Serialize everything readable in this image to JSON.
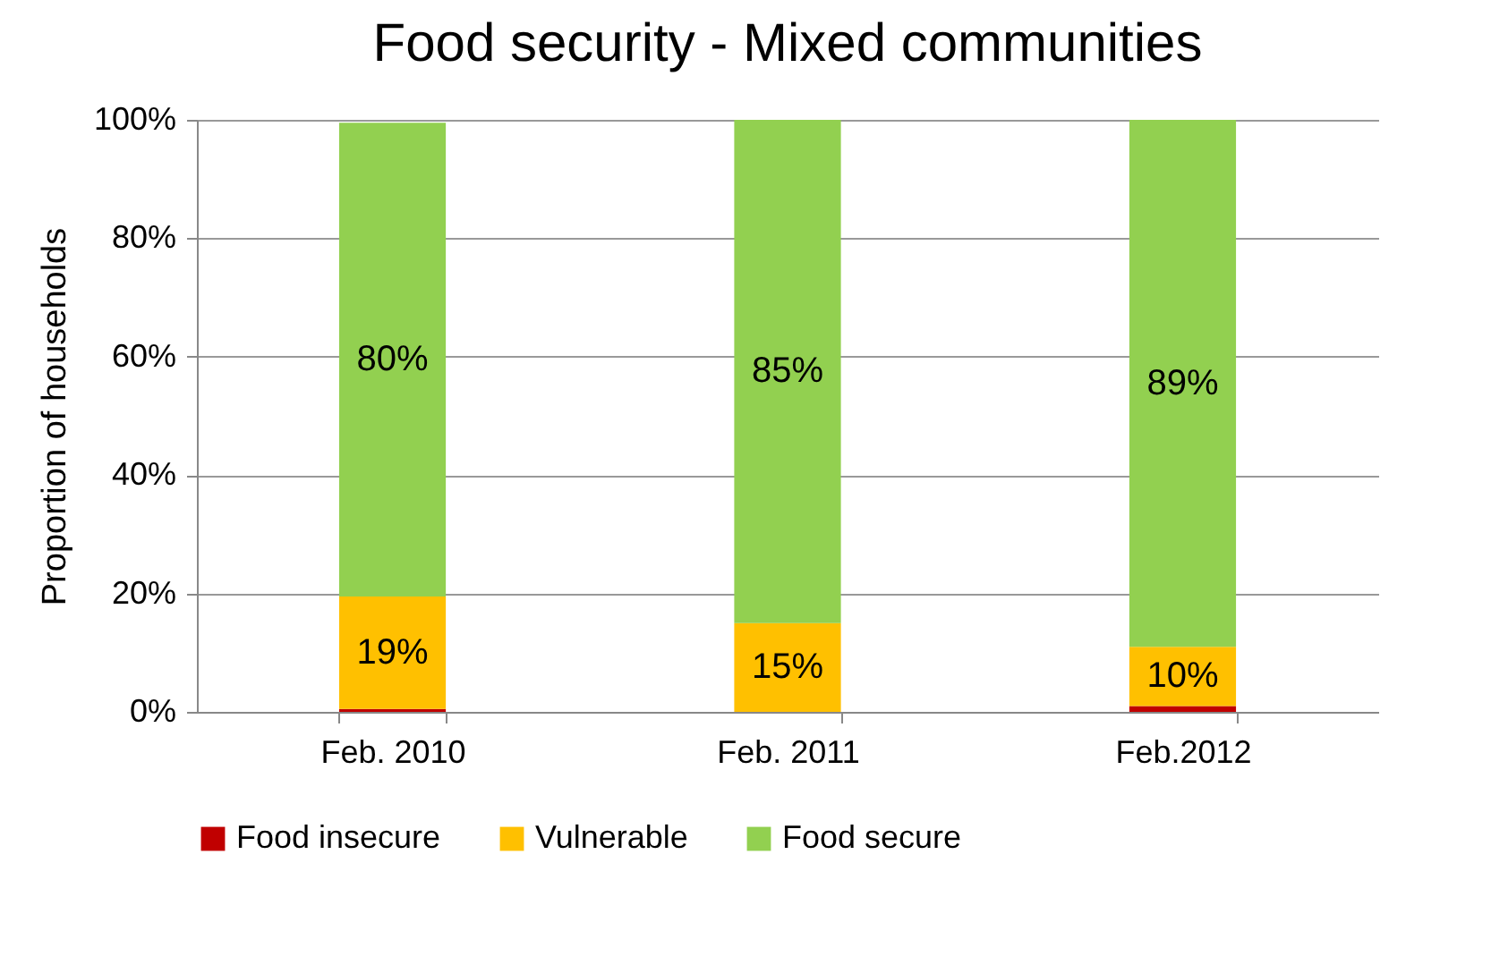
{
  "chart_data": {
    "type": "bar",
    "title": "Food security - Mixed communities",
    "ylabel": "Proportion of households",
    "categories": [
      "Feb. 2010",
      "Feb. 2011",
      "Feb.2012"
    ],
    "stacked": true,
    "series": [
      {
        "name": "Food insecure",
        "color": "#c00000",
        "values": [
          0.5,
          0,
          1
        ],
        "value_labels": [
          null,
          null,
          null
        ]
      },
      {
        "name": "Vulnerable",
        "color": "#ffc000",
        "values": [
          19,
          15,
          10
        ],
        "value_labels": [
          "19%",
          "15%",
          "10%"
        ]
      },
      {
        "name": "Food secure",
        "color": "#92d050",
        "values": [
          80,
          85,
          89
        ],
        "value_labels": [
          "80%",
          "85%",
          "89%"
        ]
      }
    ],
    "ylim": [
      0,
      100
    ],
    "yticks": [
      {
        "value": 0,
        "label": "0%"
      },
      {
        "value": 20,
        "label": "20%"
      },
      {
        "value": 40,
        "label": "40%"
      },
      {
        "value": 60,
        "label": "60%"
      },
      {
        "value": 80,
        "label": "80%"
      },
      {
        "value": 100,
        "label": "100%"
      }
    ],
    "grid": "y",
    "legend": "bottom"
  }
}
